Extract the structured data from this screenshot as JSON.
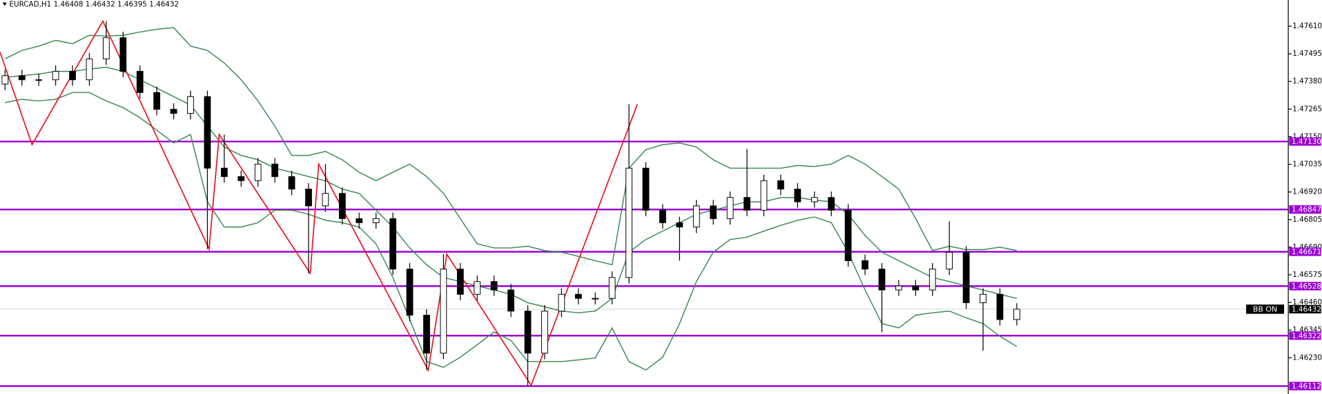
{
  "header": {
    "symbol": "EURCAD,H1",
    "open": 1.46408,
    "high": 1.46432,
    "low": 1.46395,
    "close": 1.46432
  },
  "chart_data": {
    "type": "candlestick",
    "xlim": [
      -0.3,
      76.1
    ],
    "ylim": [
      1.46079,
      1.47719
    ],
    "yticks": [
      {
        "value": 1.4761,
        "label": "1.47610"
      },
      1.47495,
      {
        "value": 1.4738,
        "label": "1.47380"
      },
      1.47265,
      {
        "value": 1.4715,
        "label": "1.47150"
      },
      1.47035,
      {
        "value": 1.4692,
        "label": "1.46920"
      },
      1.46805,
      {
        "value": 1.4669,
        "label": "1.46690"
      },
      1.46575,
      {
        "value": 1.4646,
        "label": "1.46460"
      },
      1.46345,
      {
        "value": 1.4623,
        "label": "1.46230"
      }
    ],
    "open": [
      1.47369,
      1.47404,
      1.47387,
      1.47387,
      1.47422,
      1.47387,
      1.47474,
      1.47562,
      1.47422,
      1.47334,
      1.47264,
      1.47247,
      1.47317,
      1.47019,
      1.46984,
      1.46967,
      1.47036,
      1.46984,
      1.46932,
      1.46862,
      1.46914,
      1.46809,
      1.46792,
      1.46809,
      1.46599,
      1.46407,
      1.46249,
      1.46599,
      1.46494,
      1.46547,
      1.46512,
      1.46424,
      1.46249,
      1.46424,
      1.46494,
      1.46477,
      1.46477,
      1.46564,
      1.47019,
      1.46844,
      1.46792,
      1.46774,
      1.46862,
      1.46809,
      1.46897,
      1.46844,
      1.46967,
      1.46932,
      1.46879,
      1.46897,
      1.46844,
      1.46634,
      1.46599,
      1.46512,
      1.46529,
      1.46512,
      1.46599,
      1.46669,
      1.46459,
      1.46494,
      1.46389
    ],
    "high": [
      1.47429,
      1.47429,
      1.47412,
      1.47447,
      1.47447,
      1.47499,
      1.47631,
      1.47587,
      1.47447,
      1.47359,
      1.47289,
      1.47342,
      1.47342,
      1.47159,
      1.47009,
      1.47061,
      1.47061,
      1.47009,
      1.46957,
      1.47036,
      1.46939,
      1.46834,
      1.46834,
      1.46834,
      1.46624,
      1.46432,
      1.46661,
      1.46624,
      1.46572,
      1.46572,
      1.46537,
      1.46449,
      1.46449,
      1.46519,
      1.46519,
      1.46502,
      1.46589,
      1.47285,
      1.47044,
      1.46869,
      1.46817,
      1.46887,
      1.46887,
      1.46922,
      1.47099,
      1.46992,
      1.46992,
      1.46957,
      1.46922,
      1.46922,
      1.46869,
      1.46659,
      1.46624,
      1.46554,
      1.46554,
      1.46624,
      1.46798,
      1.46694,
      1.46519,
      1.46519,
      1.46457
    ],
    "low": [
      1.47344,
      1.47362,
      1.47362,
      1.47362,
      1.47362,
      1.47362,
      1.47449,
      1.47397,
      1.47309,
      1.47239,
      1.47222,
      1.47222,
      1.46682,
      1.46959,
      1.46942,
      1.46942,
      1.46959,
      1.46907,
      1.46581,
      1.46837,
      1.46784,
      1.46767,
      1.46767,
      1.46574,
      1.46382,
      1.46178,
      1.46224,
      1.46469,
      1.46469,
      1.46487,
      1.46399,
      1.46115,
      1.46224,
      1.46399,
      1.46452,
      1.46452,
      1.46452,
      1.46539,
      1.46819,
      1.46767,
      1.46634,
      1.46749,
      1.46784,
      1.46784,
      1.46819,
      1.46819,
      1.46907,
      1.46854,
      1.46854,
      1.46819,
      1.46609,
      1.46574,
      1.46336,
      1.46487,
      1.46487,
      1.46487,
      1.46574,
      1.46434,
      1.46259,
      1.46364,
      1.46364
    ],
    "close": [
      1.47404,
      1.47387,
      1.47387,
      1.47422,
      1.47387,
      1.47474,
      1.47562,
      1.47422,
      1.47334,
      1.47264,
      1.47247,
      1.47317,
      1.47019,
      1.46984,
      1.46967,
      1.47036,
      1.46984,
      1.46932,
      1.46862,
      1.46914,
      1.46809,
      1.46792,
      1.46809,
      1.46599,
      1.46407,
      1.46249,
      1.46599,
      1.46494,
      1.46547,
      1.46512,
      1.46424,
      1.46249,
      1.46424,
      1.46494,
      1.46477,
      1.46477,
      1.46564,
      1.47019,
      1.46844,
      1.46792,
      1.46774,
      1.46862,
      1.46809,
      1.46897,
      1.46844,
      1.46967,
      1.46932,
      1.46879,
      1.46897,
      1.46844,
      1.46634,
      1.46599,
      1.46512,
      1.46529,
      1.46512,
      1.46599,
      1.46669,
      1.46459,
      1.46494,
      1.46389,
      1.46432
    ],
    "bands": {
      "color": "#3a8a52",
      "upper": [
        1.47474,
        1.47509,
        1.47527,
        1.47551,
        1.47537,
        1.47572,
        1.47569,
        1.47572,
        1.47586,
        1.47597,
        1.47604,
        1.47527,
        1.47509,
        1.47457,
        1.47387,
        1.47299,
        1.47194,
        1.47072,
        1.47072,
        1.47089,
        1.47054,
        1.47002,
        1.46967,
        1.47002,
        1.47036,
        1.46984,
        1.46914,
        1.46809,
        1.46704,
        1.46687,
        1.46687,
        1.46694,
        1.46676,
        1.46669,
        1.46652,
        1.46634,
        1.46617,
        1.47019,
        1.47096,
        1.47117,
        1.47124,
        1.47107,
        1.47054,
        1.47019,
        1.47019,
        1.47019,
        1.47019,
        1.4703,
        1.47026,
        1.47036,
        1.47072,
        1.47036,
        1.46984,
        1.46932,
        1.46809,
        1.46676,
        1.46694,
        1.4668,
        1.4668,
        1.4669,
        1.46676
      ],
      "middle": [
        1.47397,
        1.47404,
        1.47411,
        1.47422,
        1.47422,
        1.47432,
        1.47439,
        1.47422,
        1.47387,
        1.47352,
        1.47317,
        1.47282,
        1.47194,
        1.47107,
        1.47072,
        1.47054,
        1.47019,
        1.47002,
        1.46984,
        1.46967,
        1.46932,
        1.46914,
        1.46844,
        1.46774,
        1.46687,
        1.46617,
        1.46564,
        1.46547,
        1.46529,
        1.46512,
        1.46494,
        1.46459,
        1.46442,
        1.46424,
        1.46417,
        1.46424,
        1.46477,
        1.46669,
        1.46722,
        1.46757,
        1.46792,
        1.46827,
        1.46844,
        1.46862,
        1.46879,
        1.46879,
        1.46897,
        1.46897,
        1.46886,
        1.46879,
        1.46827,
        1.46739,
        1.46669,
        1.46634,
        1.46599,
        1.46564,
        1.46547,
        1.46529,
        1.46512,
        1.46494,
        1.46477
      ],
      "lower": [
        1.47292,
        1.47306,
        1.47299,
        1.47306,
        1.47334,
        1.47334,
        1.47299,
        1.47271,
        1.47229,
        1.47177,
        1.47124,
        1.47159,
        1.46879,
        1.46774,
        1.46774,
        1.46792,
        1.46844,
        1.46844,
        1.46827,
        1.46802,
        1.46792,
        1.46774,
        1.46704,
        1.46564,
        1.46389,
        1.46214,
        1.4619,
        1.46232,
        1.46284,
        1.46337,
        1.46302,
        1.46214,
        1.46214,
        1.46214,
        1.46221,
        1.46229,
        1.46354,
        1.46214,
        1.46179,
        1.46232,
        1.46372,
        1.46547,
        1.46669,
        1.46722,
        1.46732,
        1.46757,
        1.46781,
        1.46802,
        1.46816,
        1.46792,
        1.46669,
        1.46512,
        1.46372,
        1.46354,
        1.46407,
        1.46417,
        1.46424,
        1.46396,
        1.46372,
        1.46319,
        1.46277
      ]
    },
    "zigzag": {
      "color": "#e8141e",
      "x": [
        -0.3,
        1.6,
        5.8,
        12.1,
        12.7,
        18.1,
        18.6,
        25.1,
        26.2,
        31.2,
        37.5
      ],
      "y": [
        1.47502,
        1.47117,
        1.47631,
        1.46682,
        1.47159,
        1.46581,
        1.47036,
        1.46178,
        1.46661,
        1.46115,
        1.47285
      ]
    },
    "levels": {
      "color": "#9b00d6",
      "values": [
        {
          "value": 1.4713,
          "label": "1.47130"
        },
        1.46847,
        1.46671,
        1.46528,
        1.46322,
        1.46112
      ]
    },
    "last_price": 1.46432,
    "indicator_label": "BB ON"
  }
}
